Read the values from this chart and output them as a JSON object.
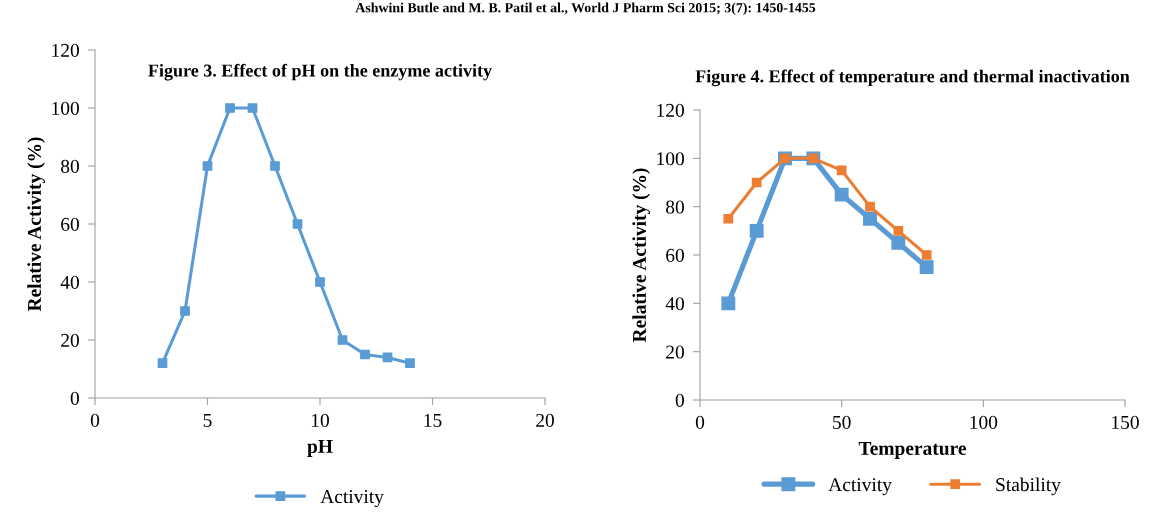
{
  "chart_data": [
    {
      "type": "line",
      "title": "Figure 3. Effect of pH on the enzyme activity",
      "xlabel": "pH",
      "ylabel": "Relative Activity (%)",
      "annotations": [
        "Ashwini Butle and M. B. Patil et al., World J Pharm Sci 2015; 3(7): 1450-1455"
      ],
      "x": [
        3,
        4,
        5,
        6,
        7,
        8,
        9,
        10,
        11,
        12,
        13,
        14
      ],
      "series": [
        {
          "name": "Activity",
          "color": "#5b9bd5",
          "values": [
            12,
            30,
            80,
            100,
            100,
            80,
            60,
            40,
            20,
            15,
            14,
            12
          ]
        }
      ],
      "xlim": [
        0,
        20
      ],
      "xticks": [
        0,
        5,
        10,
        15,
        20
      ],
      "ylim": [
        0,
        120
      ],
      "yticks": [
        0,
        20,
        40,
        60,
        80,
        100,
        120
      ],
      "grid": false,
      "legend": "bottom",
      "marker": "square",
      "line_style": "solid"
    },
    {
      "type": "line",
      "title": "Figure 4. Effect of temperature and thermal inactivation",
      "xlabel": "Temperature",
      "ylabel": "Relative Activity (%)",
      "x": [
        10,
        20,
        30,
        40,
        50,
        60,
        70,
        80
      ],
      "series": [
        {
          "name": "Activity",
          "color": "#5b9bd5",
          "values": [
            40,
            70,
            100,
            100,
            85,
            75,
            65,
            55
          ]
        },
        {
          "name": "Stability",
          "color": "#ed7d31",
          "values": [
            75,
            90,
            100,
            100,
            95,
            80,
            70,
            60
          ]
        }
      ],
      "xlim": [
        0,
        150
      ],
      "xticks": [
        0,
        50,
        100,
        150
      ],
      "ylim": [
        0,
        120
      ],
      "yticks": [
        0,
        20,
        40,
        60,
        80,
        100,
        120
      ],
      "grid": false,
      "legend": "bottom",
      "marker": "square",
      "line_style": "solid"
    }
  ]
}
